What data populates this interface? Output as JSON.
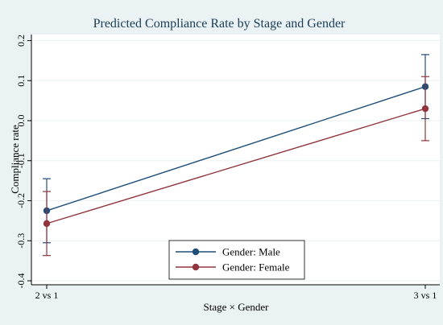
{
  "chart_data": {
    "type": "line",
    "title": "Predicted Compliance Rate by Stage and Gender",
    "xlabel": "Stage × Gender",
    "ylabel": "Compliance rate",
    "categories": [
      "2 vs 1",
      "3 vs 1"
    ],
    "ylim": [
      -0.41,
      0.215
    ],
    "yticks": [
      -0.4,
      -0.3,
      -0.2,
      -0.1,
      0.0,
      0.1,
      0.2
    ],
    "ytick_labels": [
      "-0.4",
      "-0.3",
      "-0.2",
      "-0.1",
      "0.0",
      "0.1",
      "0.2"
    ],
    "grid": "horizontal",
    "legend": "bottom-center",
    "series": [
      {
        "name": "Gender: Male",
        "color": "#1f4e79",
        "values": [
          -0.225,
          0.085
        ],
        "ci_low": [
          -0.305,
          0.005
        ],
        "ci_high": [
          -0.145,
          0.165
        ]
      },
      {
        "name": "Gender: Female",
        "color": "#90353b",
        "values": [
          -0.257,
          0.03
        ],
        "ci_low": [
          -0.337,
          -0.05
        ],
        "ci_high": [
          -0.177,
          0.11
        ]
      }
    ]
  }
}
